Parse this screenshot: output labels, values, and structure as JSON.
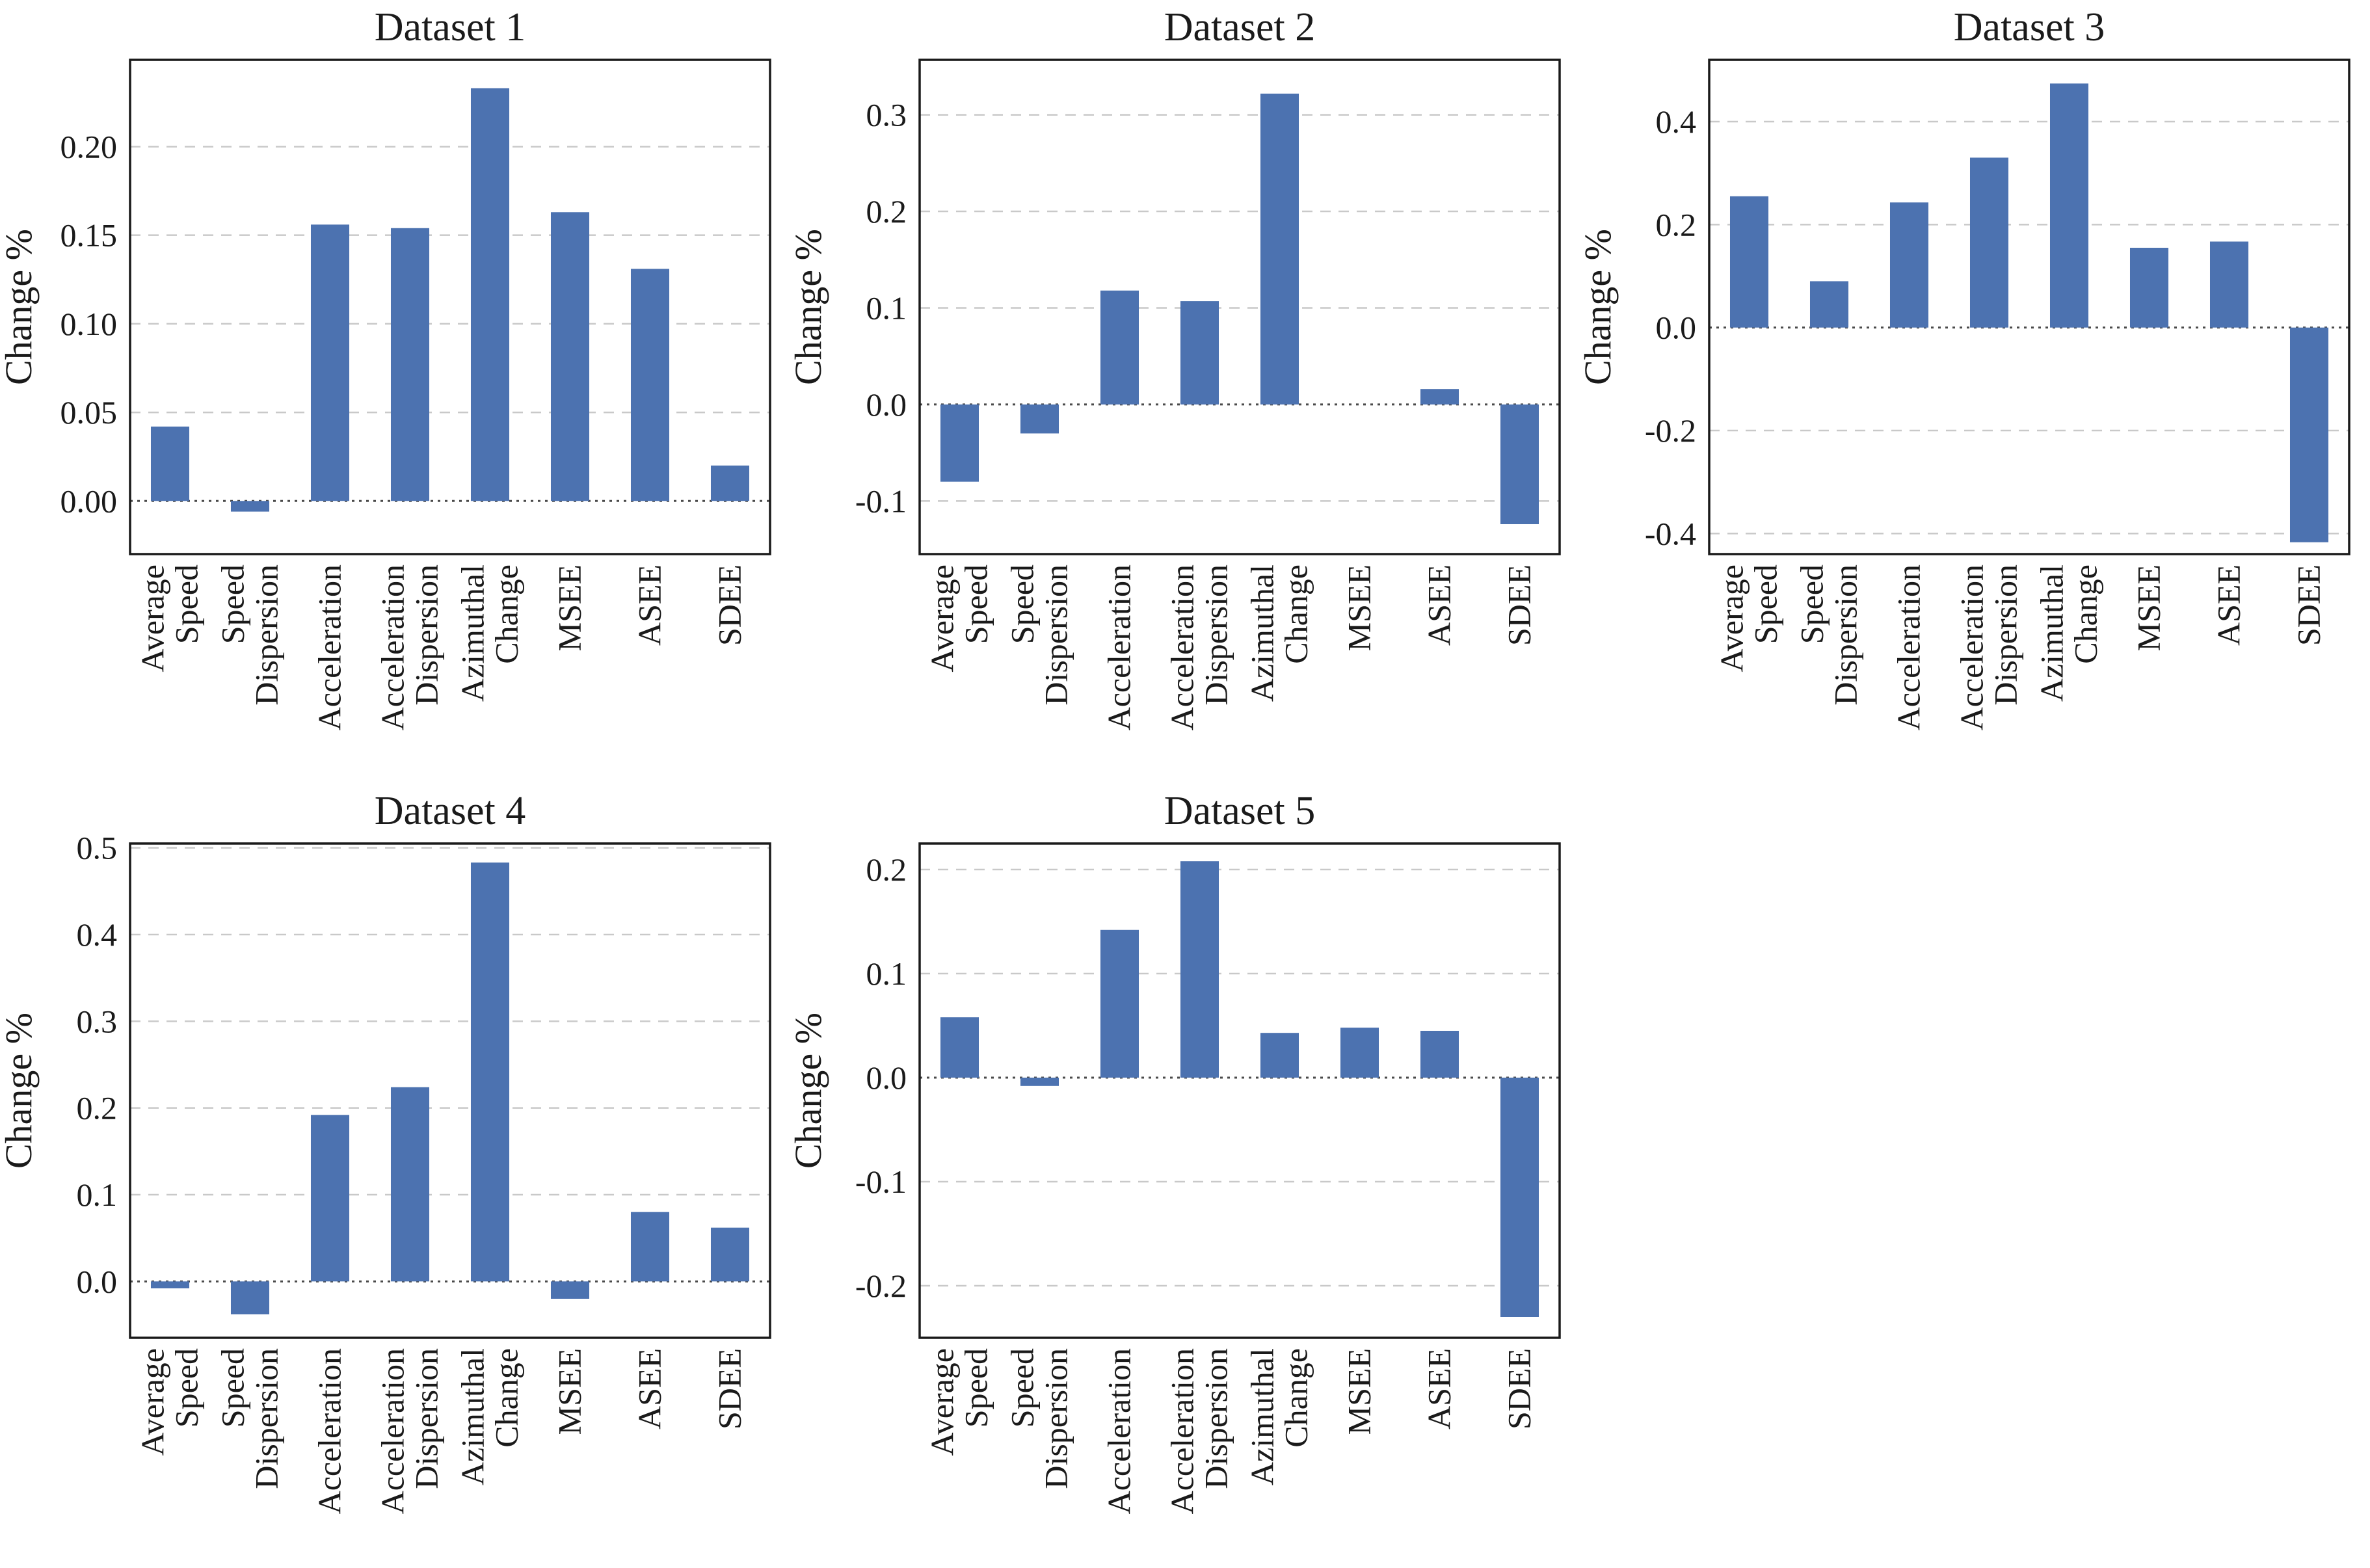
{
  "figure": {
    "background_color": "#ffffff",
    "layout": "2x3-grid-5-charts"
  },
  "style": {
    "bar_color": "#4C72B0",
    "spine_color": "#1a1a1a",
    "grid_color": "#c9c9c9",
    "zero_line_color": "#4a4a4a",
    "text_color": "#1a1a1a"
  },
  "chart_data": [
    {
      "type": "bar",
      "title": "Dataset 1",
      "ylabel": "Change %",
      "xlabel": "",
      "grid": true,
      "legend": null,
      "categories": [
        "Average Speed",
        "Speed Dispersion",
        "Acceleration",
        "Acceleration Dispersion",
        "Azimuthal Change",
        "MSEE",
        "ASEE",
        "SDEE"
      ],
      "values": [
        0.042,
        -0.006,
        0.156,
        0.154,
        0.233,
        0.163,
        0.131,
        0.02
      ],
      "yticks": [
        0.0,
        0.05,
        0.1,
        0.15,
        0.2
      ],
      "ytick_labels": [
        "0.00",
        "0.05",
        "0.10",
        "0.15",
        "0.20"
      ],
      "ylim": [
        -0.03,
        0.249
      ]
    },
    {
      "type": "bar",
      "title": "Dataset 2",
      "ylabel": "Change %",
      "xlabel": "",
      "grid": true,
      "legend": null,
      "categories": [
        "Average Speed",
        "Speed Dispersion",
        "Acceleration",
        "Acceleration Dispersion",
        "Azimuthal Change",
        "MSEE",
        "ASEE",
        "SDEE"
      ],
      "values": [
        -0.08,
        -0.03,
        0.118,
        0.107,
        0.322,
        0.0,
        0.016,
        -0.124
      ],
      "yticks": [
        -0.1,
        0.0,
        0.1,
        0.2,
        0.3
      ],
      "ytick_labels": [
        "-0.1",
        "0.0",
        "0.1",
        "0.2",
        "0.3"
      ],
      "ylim": [
        -0.155,
        0.357
      ]
    },
    {
      "type": "bar",
      "title": "Dataset 3",
      "ylabel": "Change %",
      "xlabel": "",
      "grid": true,
      "legend": null,
      "categories": [
        "Average Speed",
        "Speed Dispersion",
        "Acceleration",
        "Acceleration Dispersion",
        "Azimuthal Change",
        "MSEE",
        "ASEE",
        "SDEE"
      ],
      "values": [
        0.255,
        0.09,
        0.243,
        0.33,
        0.474,
        0.155,
        0.167,
        -0.417
      ],
      "yticks": [
        -0.4,
        -0.2,
        0.0,
        0.2,
        0.4
      ],
      "ytick_labels": [
        "-0.4",
        "-0.2",
        "0.0",
        "0.2",
        "0.4"
      ],
      "ylim": [
        -0.44,
        0.52
      ]
    },
    {
      "type": "bar",
      "title": "Dataset 4",
      "ylabel": "Change %",
      "xlabel": "",
      "grid": true,
      "legend": null,
      "categories": [
        "Average Speed",
        "Speed Dispersion",
        "Acceleration",
        "Acceleration Dispersion",
        "Azimuthal Change",
        "MSEE",
        "ASEE",
        "SDEE"
      ],
      "values": [
        -0.008,
        -0.038,
        0.192,
        0.224,
        0.483,
        -0.02,
        0.08,
        0.062
      ],
      "yticks": [
        0.0,
        0.1,
        0.2,
        0.3,
        0.4,
        0.5
      ],
      "ytick_labels": [
        "0.0",
        "0.1",
        "0.2",
        "0.3",
        "0.4",
        "0.5"
      ],
      "ylim": [
        -0.065,
        0.505
      ]
    },
    {
      "type": "bar",
      "title": "Dataset 5",
      "ylabel": "Change %",
      "xlabel": "",
      "grid": true,
      "legend": null,
      "categories": [
        "Average Speed",
        "Speed Dispersion",
        "Acceleration",
        "Acceleration Dispersion",
        "Azimuthal Change",
        "MSEE",
        "ASEE",
        "SDEE"
      ],
      "values": [
        0.058,
        -0.008,
        0.142,
        0.208,
        0.043,
        0.048,
        0.045,
        -0.23
      ],
      "yticks": [
        -0.2,
        -0.1,
        0.0,
        0.1,
        0.2
      ],
      "ytick_labels": [
        "-0.2",
        "-0.1",
        "0.0",
        "0.1",
        "0.2"
      ],
      "ylim": [
        -0.25,
        0.225
      ]
    }
  ]
}
